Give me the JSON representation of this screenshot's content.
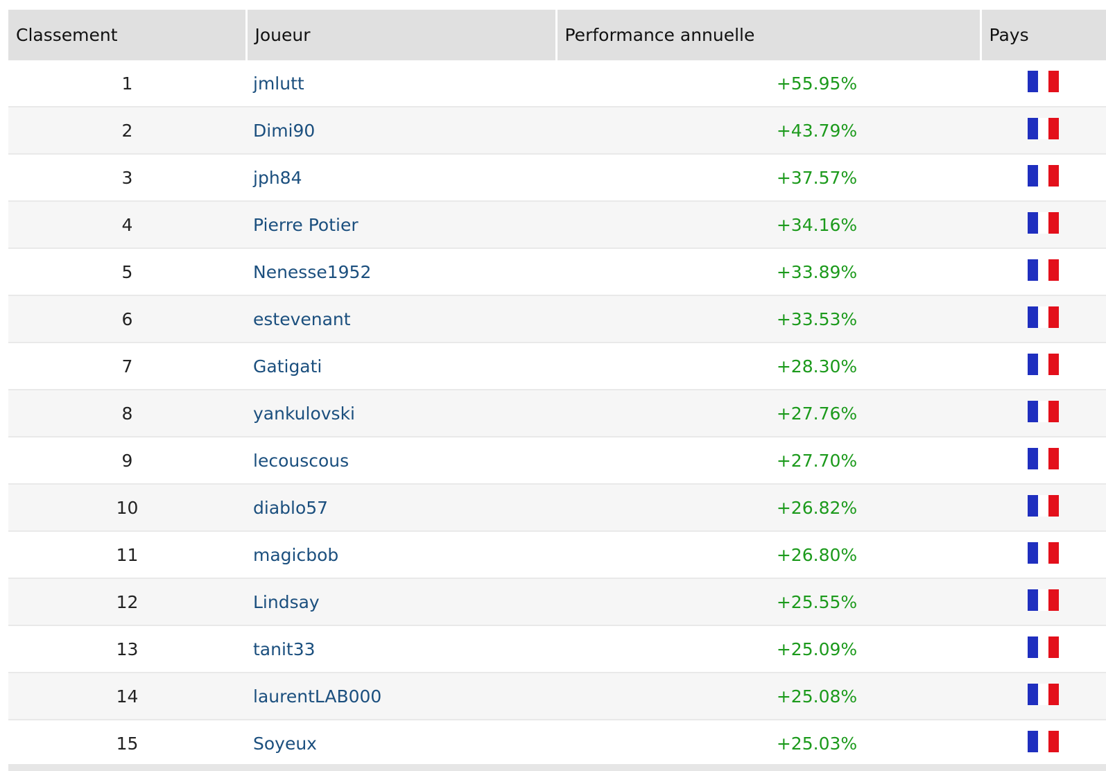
{
  "table": {
    "headers": [
      "Classement",
      "Joueur",
      "Performance annuelle",
      "Pays"
    ],
    "rows": [
      [
        "1",
        "jmlutt",
        "+55.95%"
      ],
      [
        "2",
        "Dimi90",
        "+43.79%"
      ],
      [
        "3",
        "jph84",
        "+37.57%"
      ],
      [
        "4",
        "Pierre Potier",
        "+34.16%"
      ],
      [
        "5",
        "Nenesse1952",
        "+33.89%"
      ],
      [
        "6",
        "estevenant",
        "+33.53%"
      ],
      [
        "7",
        "Gatigati",
        "+28.30%"
      ],
      [
        "8",
        "yankulovski",
        "+27.76%"
      ],
      [
        "9",
        "lecouscous",
        "+27.70%"
      ],
      [
        "10",
        "diablo57",
        "+26.82%"
      ],
      [
        "11",
        "magicbob",
        "+26.80%"
      ],
      [
        "12",
        "Lindsay",
        "+25.55%"
      ],
      [
        "13",
        "tanit33",
        "+25.09%"
      ],
      [
        "14",
        "laurentLAB000",
        "+25.08%"
      ],
      [
        "15",
        "Soyeux",
        "+25.03%"
      ]
    ]
  }
}
